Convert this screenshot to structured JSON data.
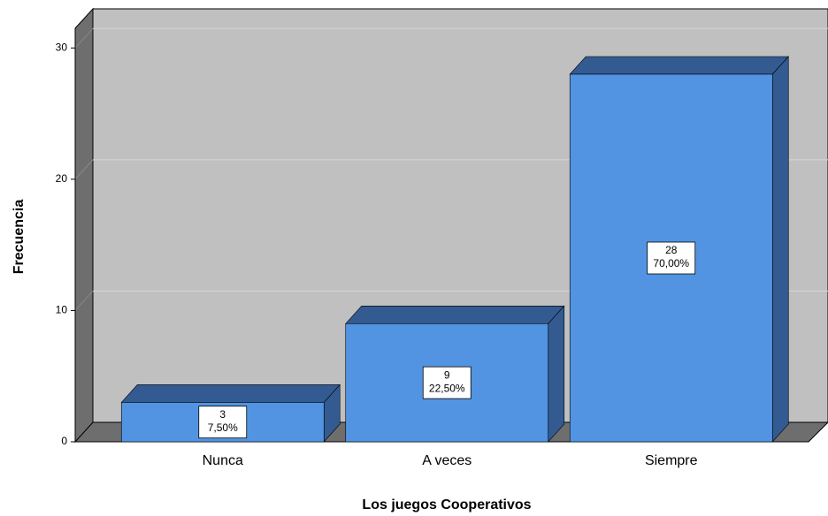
{
  "chart_data": {
    "type": "bar3d",
    "xlabel": "Los juegos Cooperativos",
    "ylabel": "Frecuencia",
    "categories": [
      "Nunca",
      "A veces",
      "Siempre"
    ],
    "values": [
      3,
      9,
      28
    ],
    "percentage_labels": [
      "7,50%",
      "22,50%",
      "70,00%"
    ],
    "color": "#5294e2",
    "ylim": [
      0,
      31.5
    ],
    "yticks": [
      0,
      10,
      20,
      30
    ],
    "grid": true
  }
}
